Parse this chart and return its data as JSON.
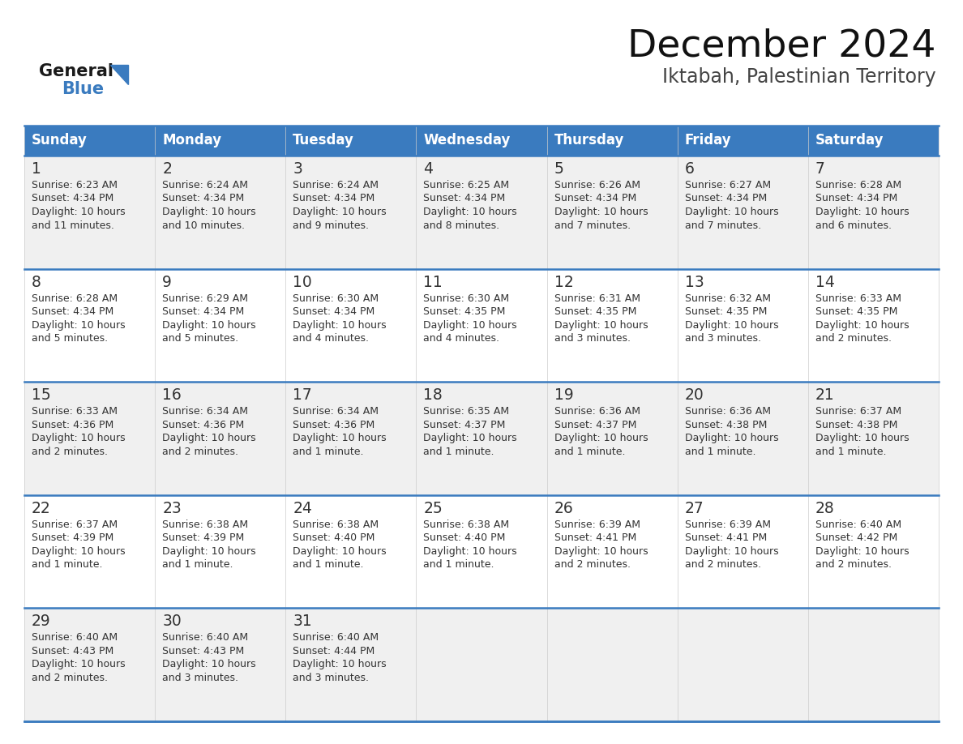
{
  "title": "December 2024",
  "subtitle": "Iktabah, Palestinian Territory",
  "header_bg_color": "#3A7BBF",
  "header_text_color": "#FFFFFF",
  "border_color": "#3A7BBF",
  "text_color": "#333333",
  "cell_bg_odd": "#F0F0F0",
  "cell_bg_even": "#FFFFFF",
  "day_names": [
    "Sunday",
    "Monday",
    "Tuesday",
    "Wednesday",
    "Thursday",
    "Friday",
    "Saturday"
  ],
  "days": [
    {
      "day": 1,
      "col": 0,
      "row": 0,
      "sunrise": "6:23 AM",
      "sunset": "4:34 PM",
      "daylight": "10 hours",
      "daylight2": "and 11 minutes."
    },
    {
      "day": 2,
      "col": 1,
      "row": 0,
      "sunrise": "6:24 AM",
      "sunset": "4:34 PM",
      "daylight": "10 hours",
      "daylight2": "and 10 minutes."
    },
    {
      "day": 3,
      "col": 2,
      "row": 0,
      "sunrise": "6:24 AM",
      "sunset": "4:34 PM",
      "daylight": "10 hours",
      "daylight2": "and 9 minutes."
    },
    {
      "day": 4,
      "col": 3,
      "row": 0,
      "sunrise": "6:25 AM",
      "sunset": "4:34 PM",
      "daylight": "10 hours",
      "daylight2": "and 8 minutes."
    },
    {
      "day": 5,
      "col": 4,
      "row": 0,
      "sunrise": "6:26 AM",
      "sunset": "4:34 PM",
      "daylight": "10 hours",
      "daylight2": "and 7 minutes."
    },
    {
      "day": 6,
      "col": 5,
      "row": 0,
      "sunrise": "6:27 AM",
      "sunset": "4:34 PM",
      "daylight": "10 hours",
      "daylight2": "and 7 minutes."
    },
    {
      "day": 7,
      "col": 6,
      "row": 0,
      "sunrise": "6:28 AM",
      "sunset": "4:34 PM",
      "daylight": "10 hours",
      "daylight2": "and 6 minutes."
    },
    {
      "day": 8,
      "col": 0,
      "row": 1,
      "sunrise": "6:28 AM",
      "sunset": "4:34 PM",
      "daylight": "10 hours",
      "daylight2": "and 5 minutes."
    },
    {
      "day": 9,
      "col": 1,
      "row": 1,
      "sunrise": "6:29 AM",
      "sunset": "4:34 PM",
      "daylight": "10 hours",
      "daylight2": "and 5 minutes."
    },
    {
      "day": 10,
      "col": 2,
      "row": 1,
      "sunrise": "6:30 AM",
      "sunset": "4:34 PM",
      "daylight": "10 hours",
      "daylight2": "and 4 minutes."
    },
    {
      "day": 11,
      "col": 3,
      "row": 1,
      "sunrise": "6:30 AM",
      "sunset": "4:35 PM",
      "daylight": "10 hours",
      "daylight2": "and 4 minutes."
    },
    {
      "day": 12,
      "col": 4,
      "row": 1,
      "sunrise": "6:31 AM",
      "sunset": "4:35 PM",
      "daylight": "10 hours",
      "daylight2": "and 3 minutes."
    },
    {
      "day": 13,
      "col": 5,
      "row": 1,
      "sunrise": "6:32 AM",
      "sunset": "4:35 PM",
      "daylight": "10 hours",
      "daylight2": "and 3 minutes."
    },
    {
      "day": 14,
      "col": 6,
      "row": 1,
      "sunrise": "6:33 AM",
      "sunset": "4:35 PM",
      "daylight": "10 hours",
      "daylight2": "and 2 minutes."
    },
    {
      "day": 15,
      "col": 0,
      "row": 2,
      "sunrise": "6:33 AM",
      "sunset": "4:36 PM",
      "daylight": "10 hours",
      "daylight2": "and 2 minutes."
    },
    {
      "day": 16,
      "col": 1,
      "row": 2,
      "sunrise": "6:34 AM",
      "sunset": "4:36 PM",
      "daylight": "10 hours",
      "daylight2": "and 2 minutes."
    },
    {
      "day": 17,
      "col": 2,
      "row": 2,
      "sunrise": "6:34 AM",
      "sunset": "4:36 PM",
      "daylight": "10 hours",
      "daylight2": "and 1 minute."
    },
    {
      "day": 18,
      "col": 3,
      "row": 2,
      "sunrise": "6:35 AM",
      "sunset": "4:37 PM",
      "daylight": "10 hours",
      "daylight2": "and 1 minute."
    },
    {
      "day": 19,
      "col": 4,
      "row": 2,
      "sunrise": "6:36 AM",
      "sunset": "4:37 PM",
      "daylight": "10 hours",
      "daylight2": "and 1 minute."
    },
    {
      "day": 20,
      "col": 5,
      "row": 2,
      "sunrise": "6:36 AM",
      "sunset": "4:38 PM",
      "daylight": "10 hours",
      "daylight2": "and 1 minute."
    },
    {
      "day": 21,
      "col": 6,
      "row": 2,
      "sunrise": "6:37 AM",
      "sunset": "4:38 PM",
      "daylight": "10 hours",
      "daylight2": "and 1 minute."
    },
    {
      "day": 22,
      "col": 0,
      "row": 3,
      "sunrise": "6:37 AM",
      "sunset": "4:39 PM",
      "daylight": "10 hours",
      "daylight2": "and 1 minute."
    },
    {
      "day": 23,
      "col": 1,
      "row": 3,
      "sunrise": "6:38 AM",
      "sunset": "4:39 PM",
      "daylight": "10 hours",
      "daylight2": "and 1 minute."
    },
    {
      "day": 24,
      "col": 2,
      "row": 3,
      "sunrise": "6:38 AM",
      "sunset": "4:40 PM",
      "daylight": "10 hours",
      "daylight2": "and 1 minute."
    },
    {
      "day": 25,
      "col": 3,
      "row": 3,
      "sunrise": "6:38 AM",
      "sunset": "4:40 PM",
      "daylight": "10 hours",
      "daylight2": "and 1 minute."
    },
    {
      "day": 26,
      "col": 4,
      "row": 3,
      "sunrise": "6:39 AM",
      "sunset": "4:41 PM",
      "daylight": "10 hours",
      "daylight2": "and 2 minutes."
    },
    {
      "day": 27,
      "col": 5,
      "row": 3,
      "sunrise": "6:39 AM",
      "sunset": "4:41 PM",
      "daylight": "10 hours",
      "daylight2": "and 2 minutes."
    },
    {
      "day": 28,
      "col": 6,
      "row": 3,
      "sunrise": "6:40 AM",
      "sunset": "4:42 PM",
      "daylight": "10 hours",
      "daylight2": "and 2 minutes."
    },
    {
      "day": 29,
      "col": 0,
      "row": 4,
      "sunrise": "6:40 AM",
      "sunset": "4:43 PM",
      "daylight": "10 hours",
      "daylight2": "and 2 minutes."
    },
    {
      "day": 30,
      "col": 1,
      "row": 4,
      "sunrise": "6:40 AM",
      "sunset": "4:43 PM",
      "daylight": "10 hours",
      "daylight2": "and 3 minutes."
    },
    {
      "day": 31,
      "col": 2,
      "row": 4,
      "sunrise": "6:40 AM",
      "sunset": "4:44 PM",
      "daylight": "10 hours",
      "daylight2": "and 3 minutes."
    }
  ],
  "logo_general_color": "#1a1a1a",
  "logo_blue_color": "#3A7BBF",
  "logo_triangle_color": "#3A7BBF"
}
